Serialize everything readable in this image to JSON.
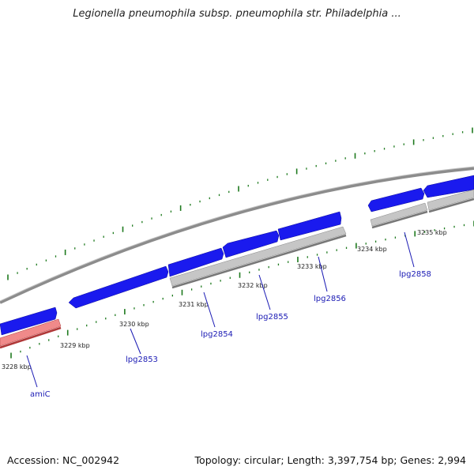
{
  "title": "Legionella pneumophila subsp. pneumophila str. Philadelphia ...",
  "footer": {
    "accession_label": "Accession:",
    "accession": "NC_002942",
    "topology_label": "Topology:",
    "topology": "circular",
    "length_label": "Length:",
    "length": "3,397,754 bp",
    "genes_label": "Genes:",
    "genes": "2,994"
  },
  "colors": {
    "backbone": "#8c8c8c",
    "forward_gene": "#1a1aee",
    "reverse_gene": "#bcbcbc",
    "highlighted_gene": "#f08a8a",
    "tick": "#1e7a1e",
    "gene_label": "#1a1ab4"
  },
  "scale_labels": [
    "3228 kbp",
    "3229 kbp",
    "3230 kbp",
    "3231 kbp",
    "3232 kbp",
    "3233 kbp",
    "3234 kbp",
    "3235 kbp"
  ],
  "gene_labels": [
    {
      "name": "amiC",
      "icon": "pointer-line"
    },
    {
      "name": "lpg2853",
      "icon": "pointer-line"
    },
    {
      "name": "lpg2854",
      "icon": "pointer-line"
    },
    {
      "name": "lpg2855",
      "icon": "pointer-line"
    },
    {
      "name": "lpg2856",
      "icon": "pointer-line"
    },
    {
      "name": "lpg2858",
      "icon": "pointer-line"
    }
  ]
}
